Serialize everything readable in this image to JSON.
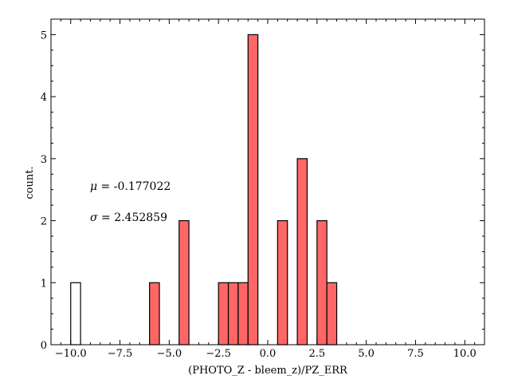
{
  "chart_data": {
    "type": "bar",
    "title": "",
    "xlabel": "(PHOTO_Z - bleem_z)/PZ_ERR",
    "ylabel": "count.",
    "xlim": [
      -11,
      11
    ],
    "ylim": [
      0,
      5.25
    ],
    "x_ticks": [
      -10.0,
      -7.5,
      -5.0,
      -2.5,
      0.0,
      2.5,
      5.0,
      7.5,
      10.0
    ],
    "x_tick_labels": [
      "−10.0",
      "−7.5",
      "−5.0",
      "−2.5",
      "0.0",
      "2.5",
      "5.0",
      "7.5",
      "10.0"
    ],
    "y_ticks": [
      0,
      1,
      2,
      3,
      4,
      5
    ],
    "y_tick_labels": [
      "0",
      "1",
      "2",
      "3",
      "4",
      "5"
    ],
    "grid": false,
    "bin_width": 0.5,
    "series": [
      {
        "color": "#ff6666",
        "bins": [
          {
            "x0": -10.0,
            "x1": -9.5,
            "count": 1,
            "fill": "none"
          },
          {
            "x0": -6.0,
            "x1": -5.5,
            "count": 1,
            "fill": "#ff6666"
          },
          {
            "x0": -4.5,
            "x1": -4.0,
            "count": 2,
            "fill": "#ff6666"
          },
          {
            "x0": -2.5,
            "x1": -2.0,
            "count": 1,
            "fill": "#ff6666"
          },
          {
            "x0": -2.0,
            "x1": -1.5,
            "count": 1,
            "fill": "#ff6666"
          },
          {
            "x0": -1.5,
            "x1": -1.0,
            "count": 1,
            "fill": "#ff6666"
          },
          {
            "x0": -1.0,
            "x1": -0.5,
            "count": 5,
            "fill": "#ff6666"
          },
          {
            "x0": 0.5,
            "x1": 1.0,
            "count": 2,
            "fill": "#ff6666"
          },
          {
            "x0": 1.5,
            "x1": 2.0,
            "count": 3,
            "fill": "#ff6666"
          },
          {
            "x0": 2.5,
            "x1": 3.0,
            "count": 2,
            "fill": "#ff6666"
          },
          {
            "x0": 3.0,
            "x1": 3.5,
            "count": 1,
            "fill": "#ff6666"
          }
        ]
      }
    ],
    "annotations": {
      "mu_symbol": "μ",
      "mu_text": " = -0.177022",
      "sigma_symbol": "σ",
      "sigma_text": " = 2.452859"
    }
  }
}
